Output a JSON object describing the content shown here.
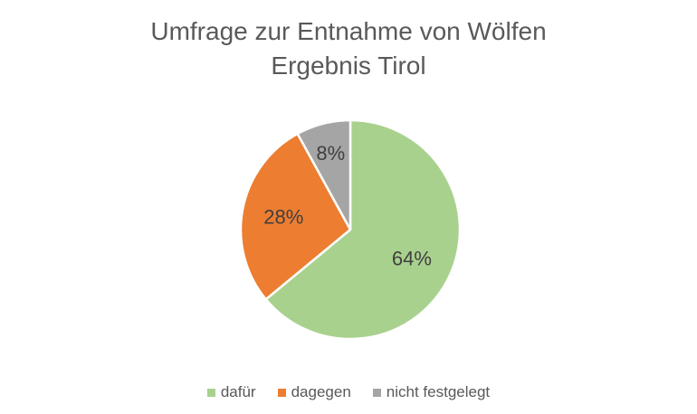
{
  "chart_data": {
    "type": "pie",
    "title": "Umfrage zur Entnahme von Wölfen",
    "subtitle": "Ergebnis Tirol",
    "categories": [
      "dafür",
      "dagegen",
      "nicht festgelegt"
    ],
    "values": [
      64,
      28,
      8
    ],
    "data_labels": [
      "64%",
      "28%",
      "8%"
    ],
    "colors": [
      "#a9d18e",
      "#ed7d31",
      "#a5a5a5"
    ],
    "legend_position": "bottom"
  }
}
